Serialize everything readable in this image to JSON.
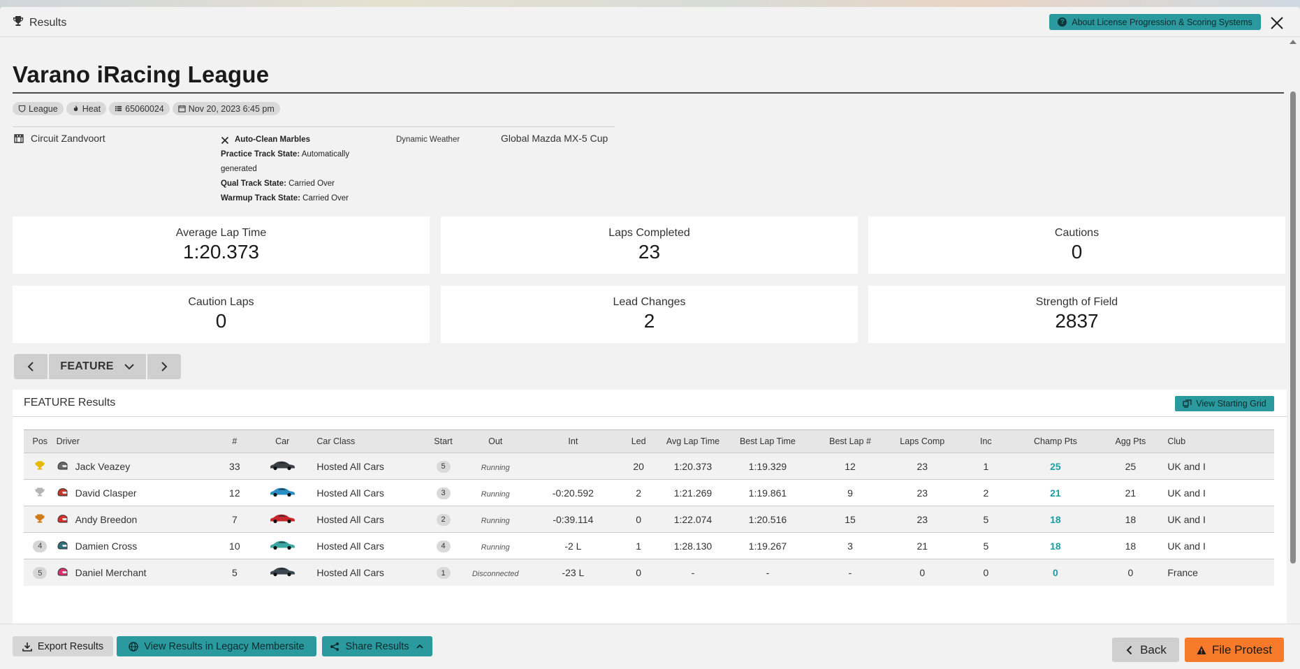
{
  "header": {
    "title": "Results",
    "about_label": "About License Progression & Scoring Systems"
  },
  "league": {
    "title": "Varano iRacing League",
    "tags": {
      "type": "League",
      "session": "Heat",
      "subsession_id": "65060024",
      "date": "Nov 20, 2023 6:45 pm"
    }
  },
  "info": {
    "track": "Circuit Zandvoort",
    "marbles": "Auto-Clean Marbles",
    "practice_label": "Practice Track State:",
    "practice_value": "Automatically generated",
    "qual_label": "Qual Track State:",
    "qual_value": "Carried Over",
    "warmup_label": "Warmup Track State:",
    "warmup_value": "Carried Over",
    "weather": "Dynamic Weather",
    "series": "Global Mazda MX-5 Cup"
  },
  "stats": {
    "avg_lap_label": "Average Lap Time",
    "avg_lap_value": "1:20.373",
    "laps_label": "Laps Completed",
    "laps_value": "23",
    "cautions_label": "Cautions",
    "cautions_value": "0",
    "caution_laps_label": "Caution Laps",
    "caution_laps_value": "0",
    "lead_changes_label": "Lead Changes",
    "lead_changes_value": "2",
    "sof_label": "Strength of Field",
    "sof_value": "2837"
  },
  "session_nav": {
    "current": "FEATURE"
  },
  "results": {
    "title": "FEATURE Results",
    "starting_grid_label": "View Starting Grid",
    "columns": [
      "Pos",
      "Driver",
      "#",
      "Car",
      "Car Class",
      "Start",
      "Out",
      "Int",
      "Led",
      "Avg Lap Time",
      "Best Lap Time",
      "Best Lap #",
      "Laps Comp",
      "Inc",
      "Champ Pts",
      "Agg Pts",
      "Club"
    ],
    "rows": [
      {
        "pos": "1",
        "trophy": "gold",
        "driver": "Jack Veazey",
        "helmet": "#6a6a6a",
        "num": "33",
        "car_color": "#3a3f44",
        "car_class": "Hosted All Cars",
        "start": "5",
        "out": "Running",
        "int": "",
        "led": "20",
        "avg": "1:20.373",
        "best": "1:19.329",
        "best_lap": "12",
        "laps": "23",
        "inc": "1",
        "champ": "25",
        "agg": "25",
        "club": "UK and I"
      },
      {
        "pos": "2",
        "trophy": "silver",
        "driver": "David Clasper",
        "helmet": "#c0392b",
        "num": "12",
        "car_color": "#2a8fc7",
        "car_class": "Hosted All Cars",
        "start": "3",
        "out": "Running",
        "int": "-0:20.592",
        "led": "2",
        "avg": "1:21.269",
        "best": "1:19.861",
        "best_lap": "9",
        "laps": "23",
        "inc": "2",
        "champ": "21",
        "agg": "21",
        "club": "UK and I"
      },
      {
        "pos": "3",
        "trophy": "bronze",
        "driver": "Andy Breedon",
        "helmet": "#d62f2f",
        "num": "7",
        "car_color": "#c8282d",
        "car_class": "Hosted All Cars",
        "start": "2",
        "out": "Running",
        "int": "-0:39.114",
        "led": "0",
        "avg": "1:22.074",
        "best": "1:20.516",
        "best_lap": "15",
        "laps": "23",
        "inc": "5",
        "champ": "18",
        "agg": "18",
        "club": "UK and I"
      },
      {
        "pos": "4",
        "trophy": "",
        "driver": "Damien Cross",
        "helmet": "#2f6d7a",
        "num": "10",
        "car_color": "#3aa7a0",
        "car_class": "Hosted All Cars",
        "start": "4",
        "out": "Running",
        "int": "-2 L",
        "led": "1",
        "avg": "1:28.130",
        "best": "1:19.267",
        "best_lap": "3",
        "laps": "21",
        "inc": "5",
        "champ": "18",
        "agg": "18",
        "club": "UK and I"
      },
      {
        "pos": "5",
        "trophy": "",
        "driver": "Daniel Merchant",
        "helmet": "#d8326e",
        "num": "5",
        "car_color": "#3d4752",
        "car_class": "Hosted All Cars",
        "start": "1",
        "out": "Disconnected",
        "int": "-23 L",
        "led": "0",
        "avg": "-",
        "best": "-",
        "best_lap": "-",
        "laps": "0",
        "inc": "0",
        "champ": "0",
        "agg": "0",
        "club": "France"
      }
    ]
  },
  "footer": {
    "export_label": "Export Results",
    "legacy_label": "View Results in Legacy Membersite",
    "share_label": "Share Results",
    "back_label": "Back",
    "protest_label": "File Protest"
  },
  "colors": {
    "accent": "#2a9a9f",
    "protest": "#f7792a",
    "champ_points": "#1f9ba3"
  },
  "icons": {
    "header": "trophy-icon",
    "close": "close-icon",
    "track": "track-icon",
    "marbles": "x-icon"
  }
}
